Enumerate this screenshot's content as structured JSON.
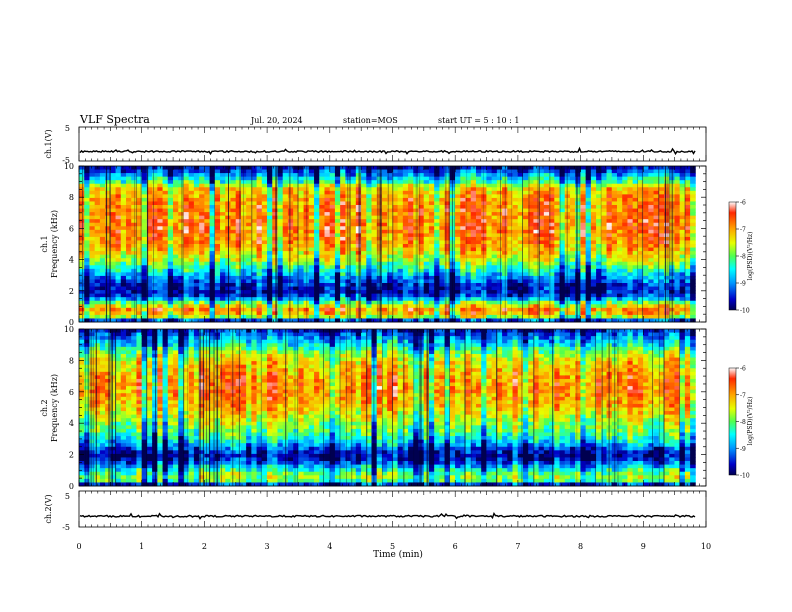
{
  "header": {
    "title": "VLF Spectra",
    "date": "Jul. 20, 2024",
    "station": "station=MOS",
    "start": "start UT =  5 : 10 : 1"
  },
  "chart_data": [
    {
      "type": "line",
      "ylabel": "ch.1(V)",
      "ylim": [
        -5,
        5
      ],
      "yticks": [
        "5",
        "-5"
      ],
      "xlim": [
        0,
        10
      ],
      "series_level": -2.2,
      "color": "#000000"
    },
    {
      "type": "heatmap",
      "ylabel_top": "ch.1",
      "ylabel": "Frequency (kHz)",
      "ylim": [
        0,
        10
      ],
      "yticks": [
        "0",
        "2",
        "4",
        "6",
        "8",
        "10"
      ],
      "xlim": [
        0,
        10
      ],
      "data_end_min": 9.83,
      "colorbar_label": "log(PSD)(V²/Hz)",
      "colorbar_range": [
        -10,
        -6
      ],
      "colorbar_ticks": [
        "-6",
        "-7",
        "-8",
        "-9",
        "-10"
      ],
      "colormap": [
        "#000050",
        "#0000c8",
        "#0096ff",
        "#00ffff",
        "#50ff50",
        "#e6ff00",
        "#ffa500",
        "#ff2800",
        "#ffffff"
      ],
      "band_profile_kHz": [
        0.0,
        0.4,
        0.8,
        1.2,
        1.6,
        2.0,
        2.4,
        2.8,
        3.2,
        3.6,
        4.0,
        4.5,
        5.0,
        6.0,
        7.0,
        8.0,
        8.6,
        9.0,
        9.4,
        9.7,
        10.0
      ],
      "band_profile_log_psd": [
        -10.0,
        -7.2,
        -6.8,
        -7.8,
        -9.2,
        -9.6,
        -9.4,
        -9.0,
        -8.6,
        -8.0,
        -7.6,
        -7.2,
        -6.9,
        -6.7,
        -6.8,
        -6.9,
        -7.2,
        -8.2,
        -8.8,
        -9.3,
        -9.8
      ]
    },
    {
      "type": "heatmap",
      "ylabel_top": "ch.2",
      "ylabel": "Frequency (kHz)",
      "ylim": [
        0,
        10
      ],
      "yticks": [
        "0",
        "2",
        "4",
        "6",
        "8",
        "10"
      ],
      "xlim": [
        0,
        10
      ],
      "data_end_min": 9.83,
      "colorbar_label": "log(PSD)(V²/Hz)",
      "colorbar_range": [
        -10,
        -6
      ],
      "colorbar_ticks": [
        "-6",
        "-7",
        "-8",
        "-9",
        "-10"
      ],
      "colormap": [
        "#000050",
        "#0000c8",
        "#0096ff",
        "#00ffff",
        "#50ff50",
        "#e6ff00",
        "#ffa500",
        "#ff2800",
        "#ffffff"
      ],
      "band_profile_kHz": [
        0.0,
        0.4,
        0.8,
        1.2,
        1.6,
        2.0,
        2.4,
        2.8,
        3.2,
        3.6,
        4.0,
        4.5,
        5.0,
        6.0,
        7.0,
        8.0,
        8.6,
        9.0,
        9.4,
        9.7,
        10.0
      ],
      "band_profile_log_psd": [
        -10.0,
        -7.6,
        -8.0,
        -8.6,
        -9.4,
        -9.7,
        -9.2,
        -8.6,
        -8.2,
        -7.9,
        -7.7,
        -7.4,
        -7.1,
        -6.8,
        -6.9,
        -7.3,
        -7.9,
        -8.5,
        -8.9,
        -9.2,
        -9.6
      ]
    },
    {
      "type": "line",
      "ylabel": "ch.2(V)",
      "ylim": [
        -5,
        5
      ],
      "yticks": [
        "5",
        "-5"
      ],
      "xlim": [
        0,
        10
      ],
      "series_level": -2.0,
      "color": "#000000"
    }
  ],
  "xaxis": {
    "label": "Time (min)",
    "ticks": [
      "0",
      "1",
      "2",
      "3",
      "4",
      "5",
      "6",
      "7",
      "8",
      "9",
      "10"
    ]
  }
}
